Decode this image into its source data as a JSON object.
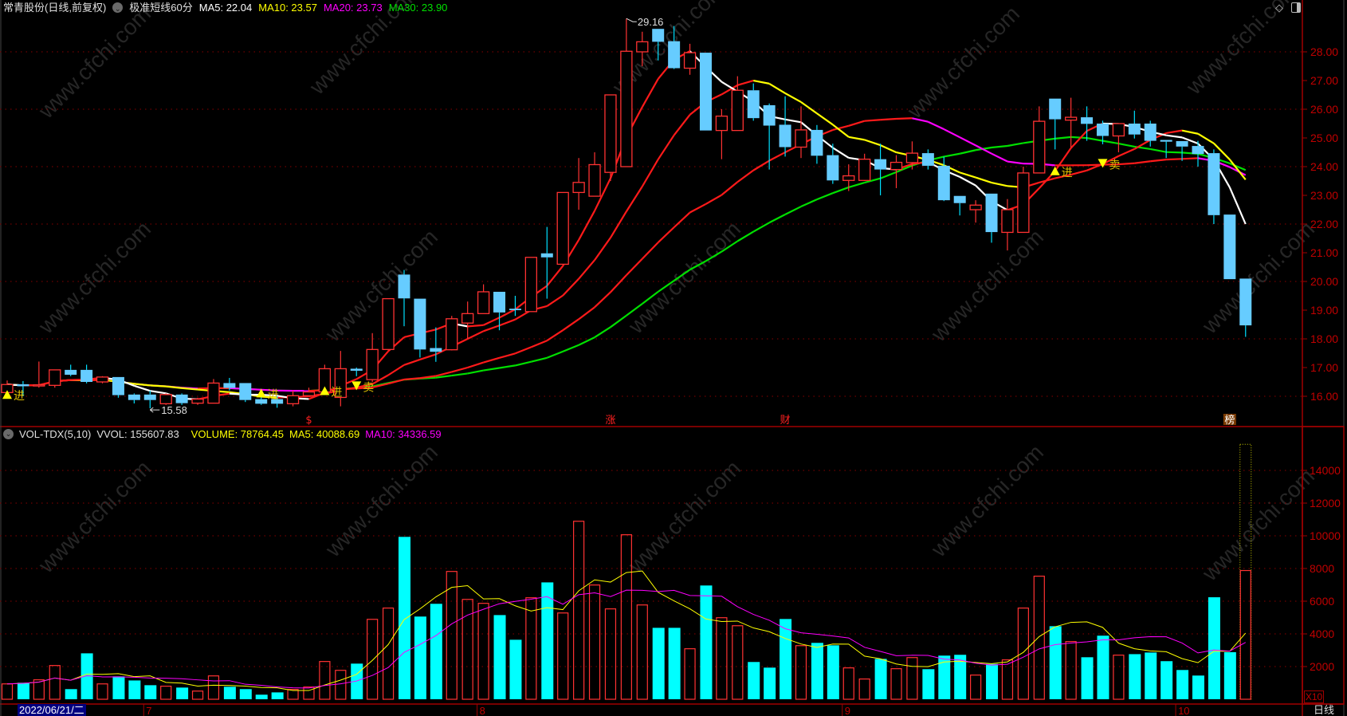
{
  "header": {
    "title": "常青股份(日线,前复权)",
    "indicator": "极准短线60分",
    "ma5": "MA5: 22.04",
    "ma10": "MA10: 23.57",
    "ma20": "MA20: 23.73",
    "ma30": "MA30: 23.90"
  },
  "volume_header": {
    "name": "VOL-TDX(5,10)",
    "vvol": "VVOL: 155607.83",
    "volume": "VOLUME: 78764.45",
    "ma5": "MA5: 40088.69",
    "ma10": "MA10: 34336.59"
  },
  "toolbar": {
    "diamond_icon": "diamond-icon",
    "panel_icon": "panel-toggle-icon"
  },
  "axis": {
    "multiplier": "X10",
    "period": "日线",
    "cursor_date": "2022/06/21/二"
  },
  "watermark": "www.cfchi.com",
  "colors": {
    "up": "#ff3232",
    "down": "#66ccff",
    "vol_down": "#00ffff",
    "ma5": "#ffffff",
    "ma10": "#ffff00",
    "ma20": "#ff00ff",
    "ma30": "#00e000",
    "axis": "#c00000"
  },
  "chart_data": [
    {
      "type": "candlestick",
      "ylim": [
        15.5,
        29.5
      ],
      "yticks": [
        "16.00",
        "17.00",
        "18.00",
        "19.00",
        "20.00",
        "21.00",
        "22.00",
        "23.00",
        "24.00",
        "25.00",
        "26.00",
        "27.00",
        "28.00"
      ],
      "grid": true,
      "x_month_labels": [
        {
          "label": "7",
          "index": 9
        },
        {
          "label": "8",
          "index": 30
        },
        {
          "label": "9",
          "index": 53
        },
        {
          "label": "10",
          "index": 74
        }
      ],
      "high_label": {
        "index": 39,
        "text": "29.16"
      },
      "low_label": {
        "index": 9,
        "text": "15.58"
      },
      "signals": [
        {
          "index": 0,
          "type": "buy",
          "text": "进",
          "price": 16.05
        },
        {
          "index": 16,
          "type": "buy",
          "text": "进",
          "price": 16.1
        },
        {
          "index": 20,
          "type": "buy",
          "text": "进",
          "price": 16.18
        },
        {
          "index": 22,
          "type": "sell",
          "text": "卖",
          "price": 16.35
        },
        {
          "index": 66,
          "type": "buy",
          "text": "进",
          "price": 23.84
        },
        {
          "index": 69,
          "type": "sell",
          "text": "卖",
          "price": 24.1
        }
      ],
      "events": [
        {
          "index": 19,
          "text": "$"
        },
        {
          "index": 38,
          "text": "涨"
        },
        {
          "index": 49,
          "text": "财"
        },
        {
          "index": 77,
          "text": "榜",
          "boxed": true
        }
      ],
      "moving_averages": [
        5,
        10,
        20,
        30
      ],
      "ohlc": [
        [
          16.13,
          16.55,
          16.05,
          16.41
        ],
        [
          16.42,
          16.53,
          16.0,
          16.35
        ],
        [
          16.36,
          17.21,
          16.3,
          16.4
        ],
        [
          16.38,
          16.92,
          16.3,
          16.92
        ],
        [
          16.92,
          17.1,
          16.7,
          16.75
        ],
        [
          16.92,
          17.1,
          16.45,
          16.5
        ],
        [
          16.5,
          16.7,
          16.45,
          16.67
        ],
        [
          16.67,
          16.67,
          15.95,
          16.04
        ],
        [
          16.06,
          16.1,
          15.75,
          15.87
        ],
        [
          16.06,
          16.2,
          15.58,
          15.87
        ],
        [
          15.74,
          16.1,
          15.7,
          16.06
        ],
        [
          16.06,
          16.1,
          15.7,
          15.76
        ],
        [
          15.76,
          15.95,
          15.7,
          15.9
        ],
        [
          15.76,
          16.6,
          15.76,
          16.46
        ],
        [
          16.46,
          16.64,
          16.2,
          16.29
        ],
        [
          16.46,
          16.46,
          15.8,
          15.87
        ],
        [
          15.9,
          15.98,
          15.7,
          15.74
        ],
        [
          15.9,
          16.0,
          15.6,
          15.74
        ],
        [
          15.74,
          16.2,
          15.65,
          16.02
        ],
        [
          16.02,
          16.3,
          16.0,
          16.15
        ],
        [
          16.15,
          17.1,
          16.1,
          16.96
        ],
        [
          15.96,
          17.58,
          15.65,
          16.96
        ],
        [
          16.96,
          17.0,
          16.7,
          16.89
        ],
        [
          16.58,
          18.2,
          16.5,
          17.63
        ],
        [
          17.63,
          19.4,
          17.6,
          19.4
        ],
        [
          20.24,
          20.4,
          18.44,
          19.41
        ],
        [
          19.4,
          19.4,
          17.35,
          17.63
        ],
        [
          17.68,
          18.4,
          17.2,
          17.55
        ],
        [
          17.62,
          18.8,
          17.6,
          18.7
        ],
        [
          18.55,
          19.3,
          18.0,
          18.88
        ],
        [
          18.88,
          19.9,
          18.88,
          19.64
        ],
        [
          19.64,
          19.64,
          18.3,
          18.92
        ],
        [
          19.05,
          19.5,
          18.8,
          19.0
        ],
        [
          18.95,
          20.84,
          18.95,
          20.84
        ],
        [
          20.98,
          21.9,
          19.4,
          20.84
        ],
        [
          20.6,
          23.1,
          20.6,
          23.1
        ],
        [
          23.1,
          24.3,
          22.5,
          23.45
        ],
        [
          22.97,
          24.5,
          22.97,
          24.07
        ],
        [
          23.8,
          26.5,
          23.5,
          26.5
        ],
        [
          24.0,
          29.16,
          24.0,
          28.02
        ],
        [
          28.0,
          28.7,
          27.5,
          28.35
        ],
        [
          28.8,
          28.8,
          27.7,
          28.35
        ],
        [
          28.37,
          28.9,
          27.4,
          27.43
        ],
        [
          27.43,
          28.28,
          27.2,
          27.97
        ],
        [
          27.97,
          27.97,
          25.26,
          25.26
        ],
        [
          25.26,
          26.0,
          24.26,
          25.76
        ],
        [
          25.26,
          27.15,
          25.26,
          26.66
        ],
        [
          26.66,
          26.9,
          25.6,
          25.69
        ],
        [
          26.14,
          26.2,
          23.9,
          25.43
        ],
        [
          25.46,
          26.45,
          24.35,
          24.68
        ],
        [
          24.68,
          26.1,
          24.3,
          25.28
        ],
        [
          25.28,
          25.45,
          24.1,
          24.38
        ],
        [
          24.4,
          24.8,
          23.4,
          23.52
        ],
        [
          23.52,
          24.08,
          23.15,
          23.68
        ],
        [
          23.52,
          24.45,
          23.5,
          24.26
        ],
        [
          24.26,
          24.8,
          23.0,
          23.9
        ],
        [
          23.9,
          24.4,
          23.25,
          24.15
        ],
        [
          24.14,
          24.88,
          23.9,
          24.47
        ],
        [
          24.47,
          24.6,
          23.9,
          24.03
        ],
        [
          24.03,
          24.35,
          22.8,
          22.83
        ],
        [
          22.98,
          22.98,
          22.3,
          22.73
        ],
        [
          22.5,
          22.83,
          22.05,
          22.66
        ],
        [
          23.06,
          23.06,
          21.35,
          21.72
        ],
        [
          21.71,
          22.87,
          21.08,
          22.5
        ],
        [
          21.71,
          24.0,
          21.71,
          23.78
        ],
        [
          23.78,
          26.1,
          23.78,
          25.58
        ],
        [
          26.37,
          26.37,
          24.6,
          25.65
        ],
        [
          25.62,
          26.4,
          24.65,
          25.72
        ],
        [
          25.72,
          26.1,
          24.9,
          25.49
        ],
        [
          25.5,
          25.6,
          24.78,
          25.07
        ],
        [
          25.07,
          25.5,
          24.5,
          25.5
        ],
        [
          25.5,
          25.95,
          24.98,
          25.12
        ],
        [
          25.5,
          25.6,
          24.7,
          24.9
        ],
        [
          24.93,
          24.93,
          24.3,
          24.87
        ],
        [
          24.89,
          24.89,
          24.2,
          24.7
        ],
        [
          24.72,
          24.9,
          24.0,
          24.44
        ],
        [
          24.47,
          24.6,
          22.0,
          22.31
        ],
        [
          22.33,
          22.33,
          20.08,
          20.08
        ],
        [
          20.1,
          20.1,
          18.07,
          18.47
        ]
      ]
    },
    {
      "type": "bar",
      "ylim": [
        0,
        16500
      ],
      "yticks": [
        "2000",
        "4000",
        "6000",
        "8000",
        "10000",
        "12000",
        "14000"
      ],
      "grid": true,
      "moving_averages": [
        5,
        10
      ],
      "projected_last_volume": 15600,
      "values": [
        940,
        1010,
        1190,
        2065,
        620,
        2810,
        940,
        1400,
        1150,
        860,
        800,
        715,
        500,
        1430,
        765,
        620,
        280,
        420,
        600,
        750,
        2310,
        1770,
        2180,
        4890,
        5580,
        9935,
        5060,
        5840,
        7820,
        6110,
        5870,
        5150,
        3640,
        6210,
        7150,
        5280,
        10890,
        6990,
        5530,
        10065,
        5770,
        4370,
        4370,
        3090,
        6960,
        4990,
        4500,
        2280,
        1935,
        4910,
        3280,
        3450,
        3300,
        1920,
        1240,
        2470,
        1870,
        2550,
        1840,
        2670,
        2720,
        1480,
        2160,
        2410,
        5580,
        7530,
        4470,
        3530,
        2570,
        3890,
        2700,
        2760,
        2860,
        2330,
        1790,
        1450,
        6240,
        2880,
        7876
      ]
    }
  ]
}
